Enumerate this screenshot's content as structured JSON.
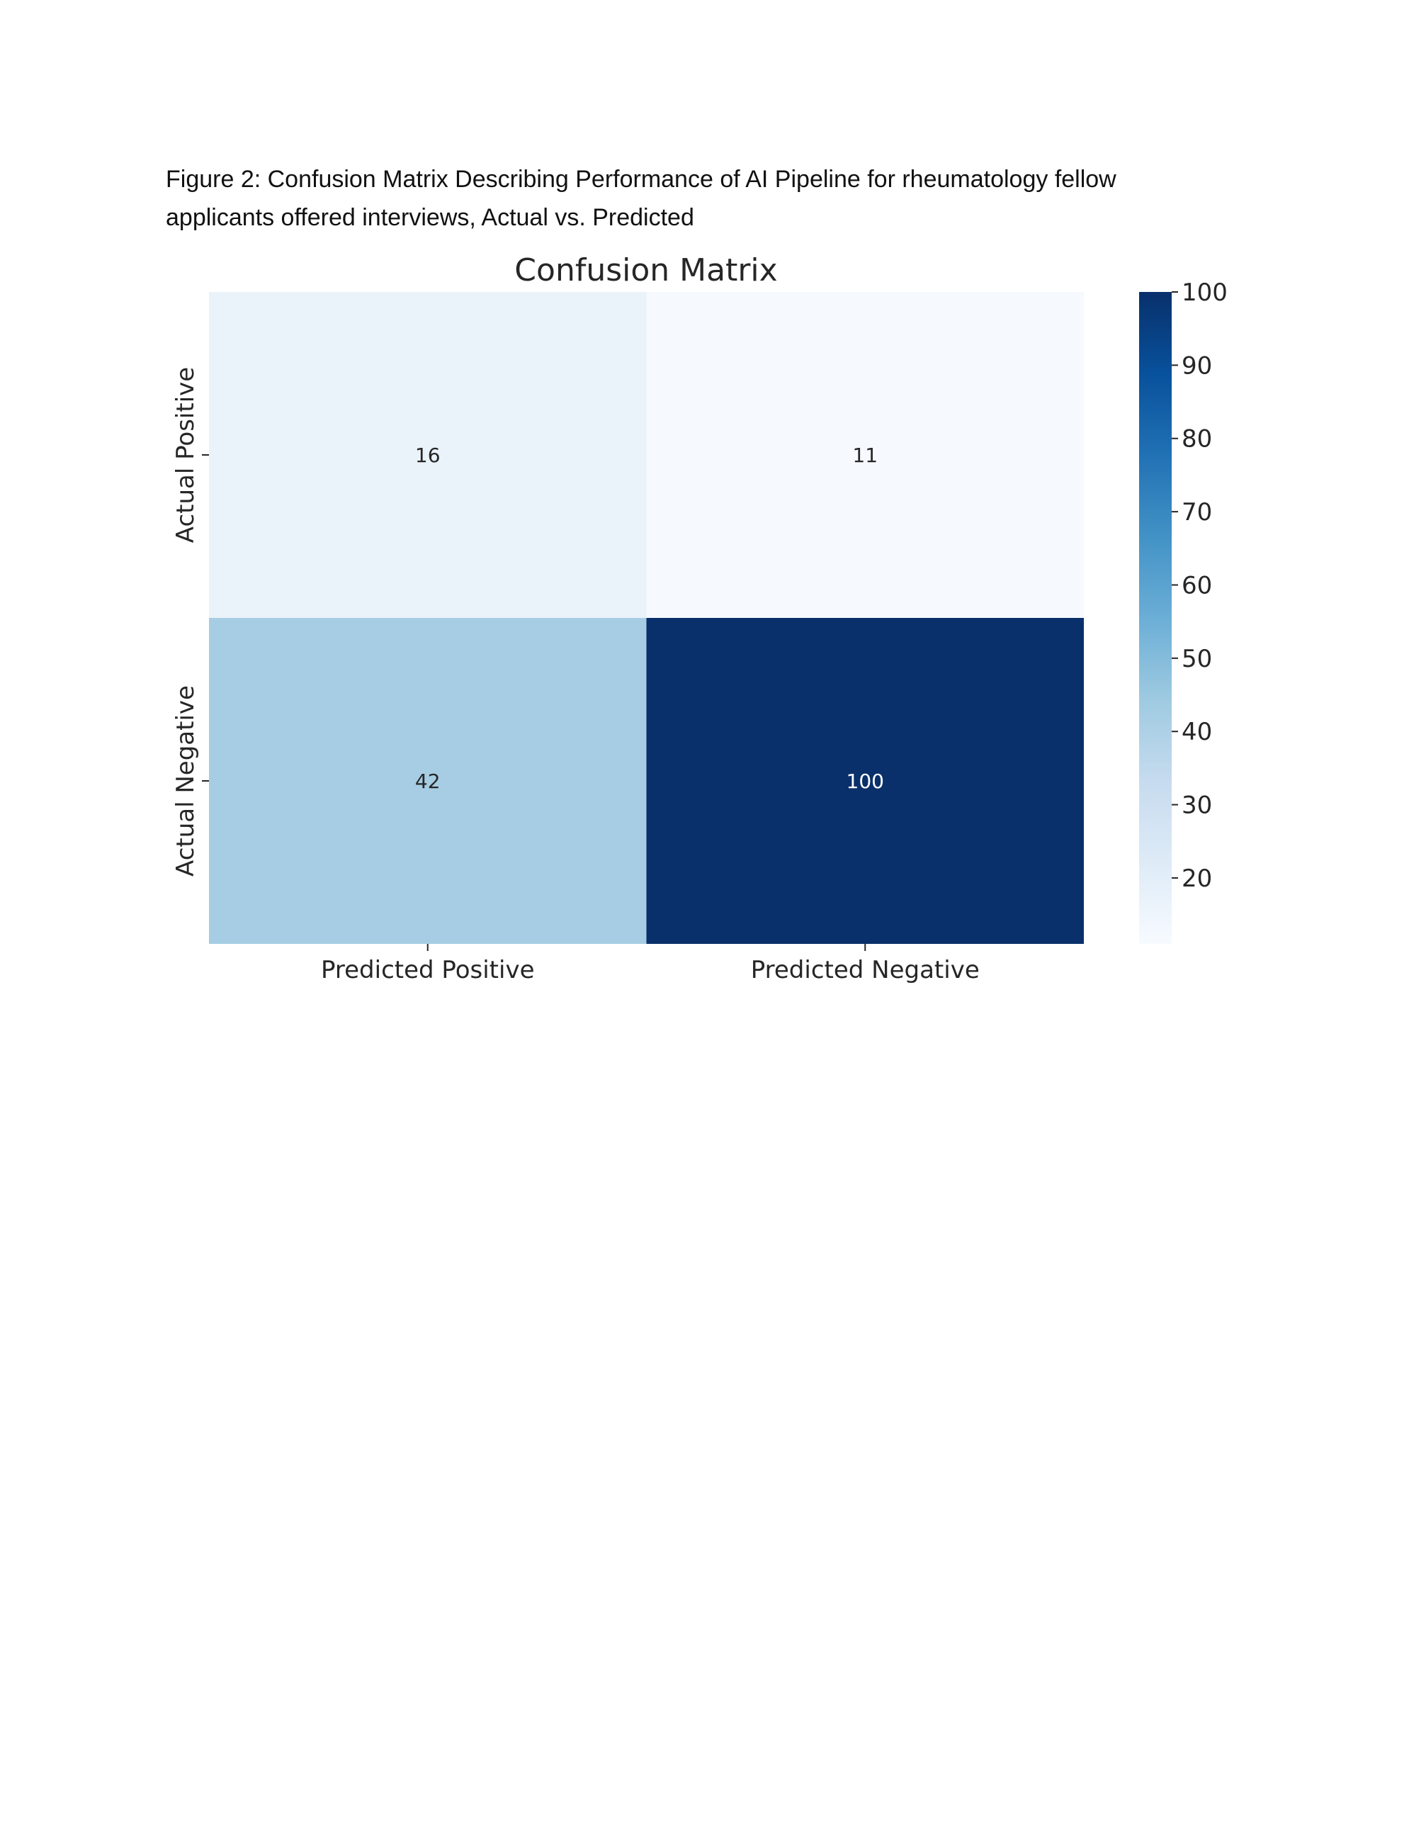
{
  "caption": {
    "line1": "Figure 2:  Confusion Matrix Describing Performance of AI Pipeline for rheumatology fellow",
    "line2": "applicants offered interviews, Actual vs. Predicted"
  },
  "chart_data": {
    "type": "heatmap",
    "title": "Confusion Matrix",
    "rows": [
      "Actual Positive",
      "Actual Negative"
    ],
    "columns": [
      "Predicted Positive",
      "Predicted Negative"
    ],
    "values": [
      [
        16,
        11
      ],
      [
        42,
        100
      ]
    ],
    "colormap": "Blues",
    "colorbar": {
      "min": 11,
      "max": 100,
      "ticks": [
        20,
        30,
        40,
        50,
        60,
        70,
        80,
        90,
        100
      ]
    },
    "cell_colors": [
      [
        "#eaf2fa",
        "#f6faff"
      ],
      [
        "#a6cde3",
        "#0a306b"
      ]
    ],
    "annotation_colors": [
      [
        "#262626",
        "#262626"
      ],
      [
        "#262626",
        "#ffffff"
      ]
    ],
    "xlabel": "",
    "ylabel": ""
  }
}
